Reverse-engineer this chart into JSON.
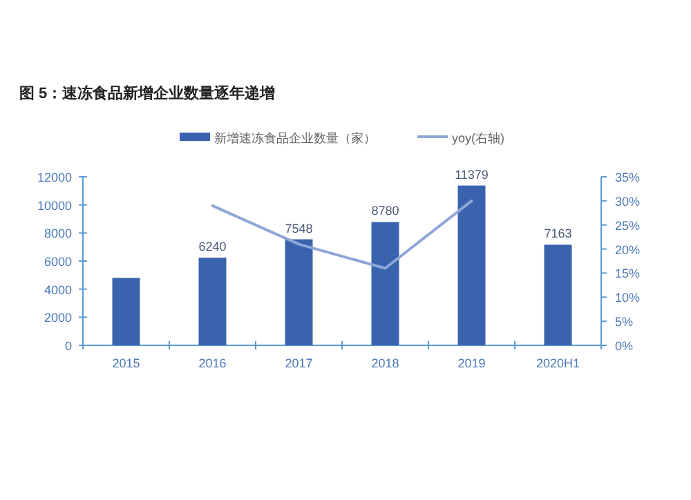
{
  "chart_data": {
    "type": "bar",
    "title": "图 5：速冻食品新增企业数量逐年递增",
    "categories": [
      "2015",
      "2016",
      "2017",
      "2018",
      "2019",
      "2020H1"
    ],
    "series": [
      {
        "name": "新增速冻食品企业数量（家）",
        "color": "#3a63ad",
        "values": [
          4800,
          6240,
          7548,
          8780,
          11379,
          7163
        ],
        "value_labels": [
          null,
          "6240",
          "7548",
          "8780",
          "11379",
          "7163"
        ]
      },
      {
        "name": "yoy(右轴)",
        "color": "#8fa6d8",
        "type": "line",
        "axis": "y2",
        "values": [
          null,
          29,
          21,
          16,
          30,
          null
        ]
      }
    ],
    "ylim": [
      0,
      12000
    ],
    "yticks": [
      0,
      2000,
      4000,
      6000,
      8000,
      10000,
      12000
    ],
    "y2lim": [
      0,
      35
    ],
    "y2ticks": [
      {
        "value": 0,
        "label": "0%"
      },
      {
        "value": 5,
        "label": "5%"
      },
      {
        "value": 10,
        "label": "10%"
      },
      {
        "value": 15,
        "label": "15%"
      },
      {
        "value": 20,
        "label": "20%"
      },
      {
        "value": 25,
        "label": "25%"
      },
      {
        "value": 30,
        "label": "30%"
      },
      {
        "value": 35,
        "label": "35%"
      }
    ],
    "legend": "top",
    "grid": false
  }
}
